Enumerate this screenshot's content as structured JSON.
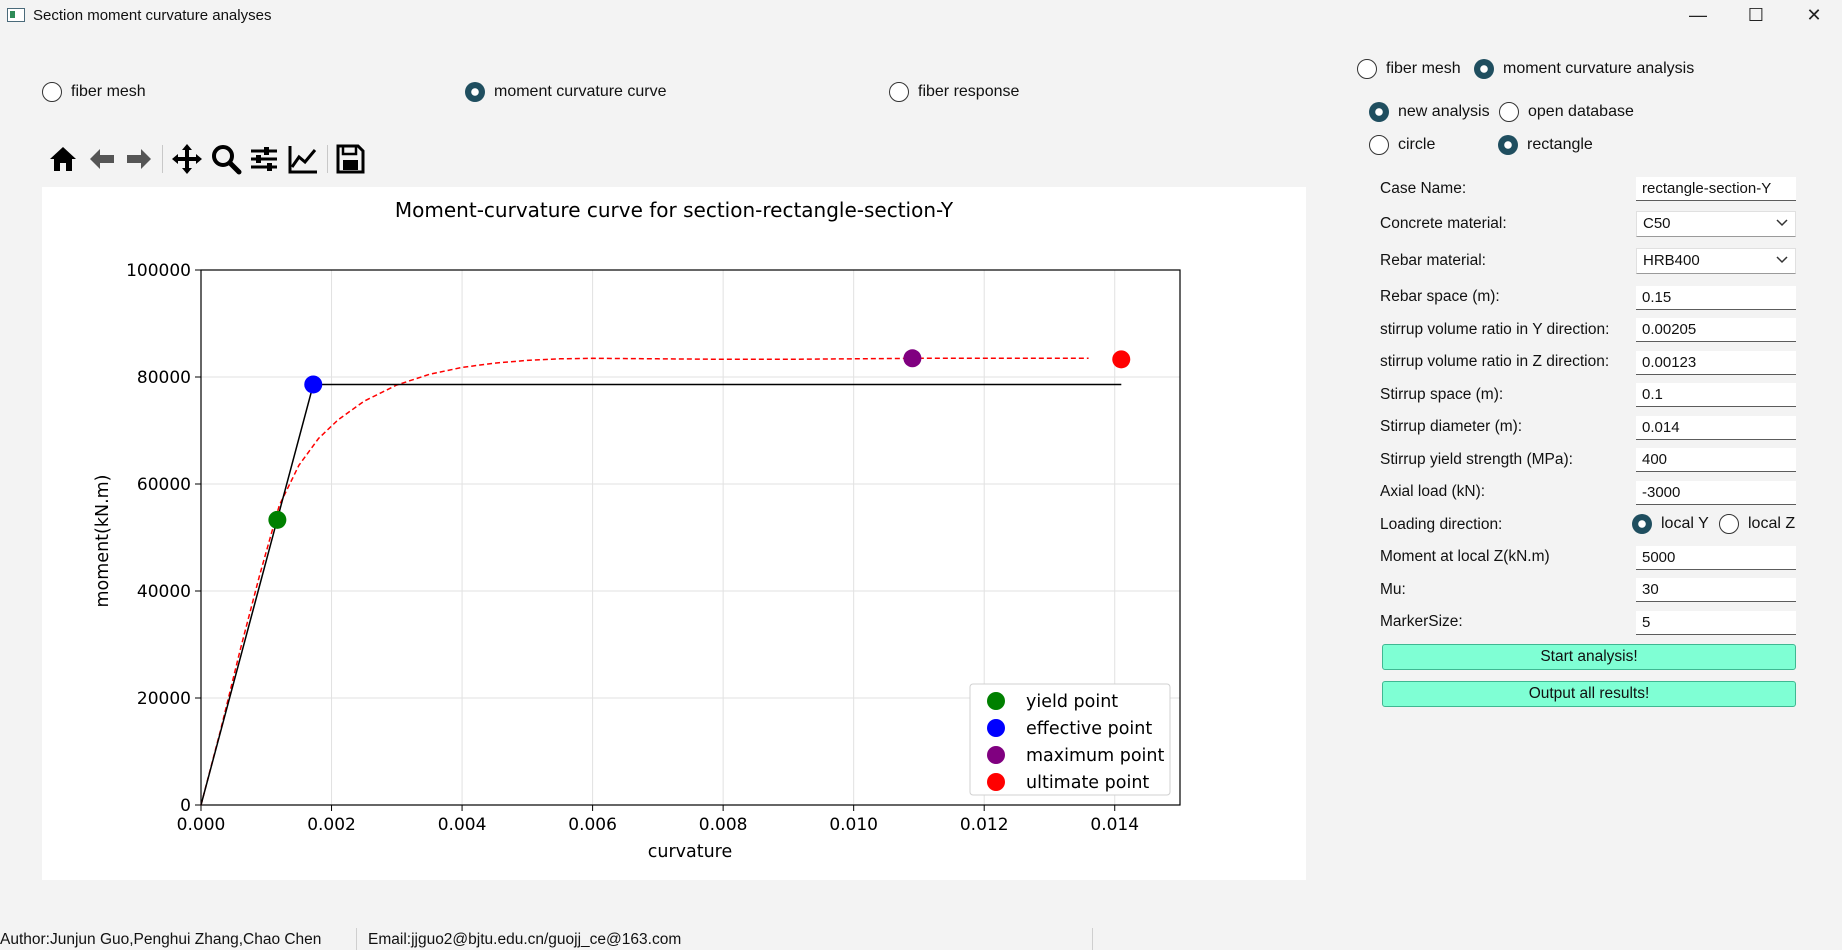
{
  "window": {
    "title": "Section moment curvature analyses"
  },
  "view_options": [
    {
      "label": "fiber mesh",
      "selected": false
    },
    {
      "label": "moment curvature curve",
      "selected": true
    },
    {
      "label": "fiber response",
      "selected": false
    }
  ],
  "toolbar": {
    "icons": [
      "home-icon",
      "back-arrow-icon",
      "forward-arrow-icon",
      "pan-icon",
      "zoom-icon",
      "configure-subplots-icon",
      "edit-axis-icon",
      "save-icon"
    ]
  },
  "mode_options": [
    {
      "label": "fiber mesh",
      "selected": false
    },
    {
      "label": "moment curvature analysis",
      "selected": true
    }
  ],
  "analysis_options": [
    {
      "label": "new analysis",
      "selected": true
    },
    {
      "label": "open database",
      "selected": false
    }
  ],
  "shape_options": [
    {
      "label": "circle",
      "selected": false
    },
    {
      "label": "rectangle",
      "selected": true
    }
  ],
  "form": {
    "case_name": {
      "label": "Case Name:",
      "value": "rectangle-section-Y"
    },
    "concrete_material": {
      "label": "Concrete material:",
      "value": "C50"
    },
    "rebar_material": {
      "label": "Rebar material:",
      "value": "HRB400"
    },
    "rebar_space": {
      "label": "Rebar space (m):",
      "value": "0.15"
    },
    "stirrup_ratio_y": {
      "label": "stirrup volume ratio in Y direction:",
      "value": "0.00205"
    },
    "stirrup_ratio_z": {
      "label": "stirrup volume ratio in Z direction:",
      "value": "0.00123"
    },
    "stirrup_space": {
      "label": "Stirrup space (m):",
      "value": "0.1"
    },
    "stirrup_diameter": {
      "label": "Stirrup diameter (m):",
      "value": "0.014"
    },
    "stirrup_yield": {
      "label": "Stirrup yield strength (MPa):",
      "value": "400"
    },
    "axial_load": {
      "label": "Axial load (kN):",
      "value": "-3000"
    },
    "loading_direction": {
      "label": "Loading direction:",
      "options": [
        {
          "label": "local Y",
          "selected": true
        },
        {
          "label": "local Z",
          "selected": false
        }
      ]
    },
    "moment_local_z": {
      "label": "Moment at local Z(kN.m)",
      "value": "5000"
    },
    "mu": {
      "label": "Mu:",
      "value": "30"
    },
    "marker_size": {
      "label": "MarkerSize:",
      "value": "5"
    }
  },
  "buttons": {
    "start": "Start analysis!",
    "output": "Output all results!"
  },
  "status": {
    "author": "Author:Junjun Guo,Penghui Zhang,Chao Chen",
    "email": "Email:jjguo2@bjtu.edu.cn/guojj_ce@163.com"
  },
  "chart_data": {
    "type": "line",
    "title": "Moment-curvature curve for section-rectangle-section-Y",
    "xlabel": "curvature",
    "ylabel": "moment(kN.m)",
    "xlim": [
      0,
      0.015
    ],
    "ylim": [
      0,
      100000
    ],
    "xticks": [
      0.0,
      0.002,
      0.004,
      0.006,
      0.008,
      0.01,
      0.012,
      0.014
    ],
    "xtick_labels": [
      "0.000",
      "0.002",
      "0.004",
      "0.006",
      "0.008",
      "0.010",
      "0.012",
      "0.014"
    ],
    "yticks": [
      0,
      20000,
      40000,
      60000,
      80000,
      100000
    ],
    "ytick_labels": [
      "0",
      "20000",
      "40000",
      "60000",
      "80000",
      "100000"
    ],
    "grid": true,
    "legend_position": "lower-right",
    "curve": {
      "style": "dashed",
      "color": "#ff0000",
      "x": [
        0,
        0.0003,
        0.0006,
        0.0009,
        0.0012,
        0.0015,
        0.0018,
        0.0021,
        0.0025,
        0.003,
        0.0035,
        0.004,
        0.0045,
        0.005,
        0.0055,
        0.006,
        0.007,
        0.008,
        0.009,
        0.01,
        0.011,
        0.012,
        0.013,
        0.0136
      ],
      "y": [
        0,
        14000,
        29000,
        43000,
        56000,
        63500,
        68500,
        72000,
        75500,
        78500,
        80500,
        81800,
        82600,
        83100,
        83400,
        83500,
        83400,
        83300,
        83300,
        83400,
        83500,
        83500,
        83500,
        83500
      ]
    },
    "bilinear": {
      "color": "#000000",
      "x": [
        0,
        0.00172,
        0.0141
      ],
      "y": [
        0,
        78600,
        78600
      ]
    },
    "points": [
      {
        "name": "yield point",
        "x": 0.00117,
        "y": 53300,
        "color": "#008000"
      },
      {
        "name": "effective point",
        "x": 0.00172,
        "y": 78600,
        "color": "#0000ff"
      },
      {
        "name": "maximum point",
        "x": 0.0109,
        "y": 83500,
        "color": "#800080"
      },
      {
        "name": "ultimate point",
        "x": 0.0141,
        "y": 83300,
        "color": "#ff0000"
      }
    ]
  }
}
